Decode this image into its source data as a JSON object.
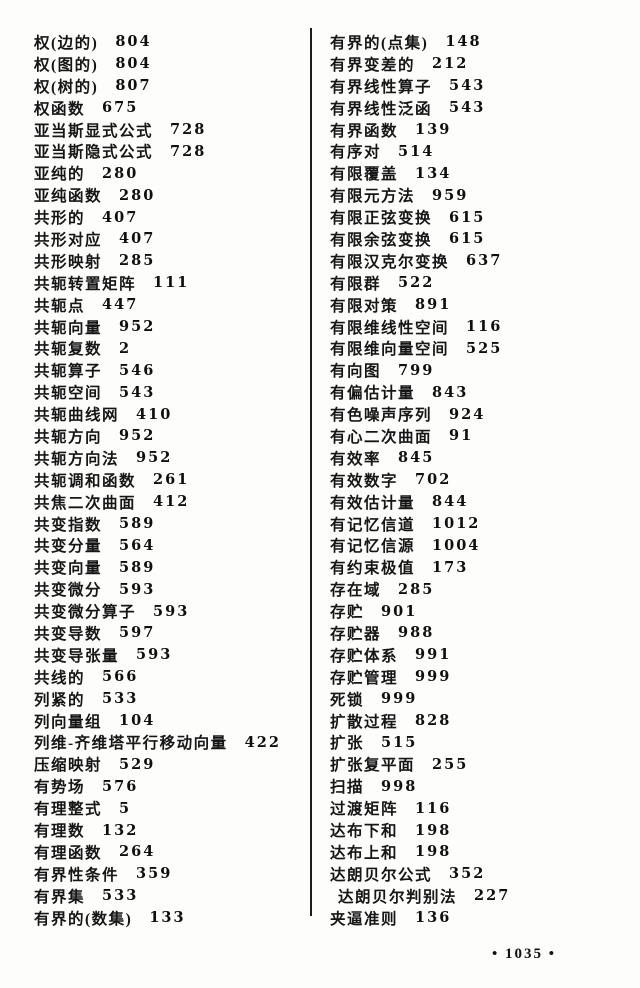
{
  "footer": {
    "page_number": "• 1035 •"
  },
  "index": {
    "left_column": {
      "entries": [
        {
          "term": "权(边的)",
          "page": "804"
        },
        {
          "term": "权(图的)",
          "page": "804"
        },
        {
          "term": "权(树的)",
          "page": "807"
        },
        {
          "term": "权函数",
          "page": "675"
        },
        {
          "term": "亚当斯显式公式",
          "page": "728"
        },
        {
          "term": "亚当斯隐式公式",
          "page": "728"
        },
        {
          "term": "亚纯的",
          "page": "280"
        },
        {
          "term": "亚纯函数",
          "page": "280"
        },
        {
          "term": "共形的",
          "page": "407"
        },
        {
          "term": "共形对应",
          "page": "407"
        },
        {
          "term": "共形映射",
          "page": "285"
        },
        {
          "term": "共轭转置矩阵",
          "page": "111"
        },
        {
          "term": "共轭点",
          "page": "447"
        },
        {
          "term": "共轭向量",
          "page": "952"
        },
        {
          "term": "共轭复数",
          "page": "2"
        },
        {
          "term": "共轭算子",
          "page": "546"
        },
        {
          "term": "共轭空间",
          "page": "543"
        },
        {
          "term": "共轭曲线网",
          "page": "410"
        },
        {
          "term": "共轭方向",
          "page": "952"
        },
        {
          "term": "共轭方向法",
          "page": "952"
        },
        {
          "term": "共轭调和函数",
          "page": "261"
        },
        {
          "term": "共焦二次曲面",
          "page": "412"
        },
        {
          "term": "共变指数",
          "page": "589"
        },
        {
          "term": "共变分量",
          "page": "564"
        },
        {
          "term": "共变向量",
          "page": "589"
        },
        {
          "term": "共变微分",
          "page": "593"
        },
        {
          "term": "共变微分算子",
          "page": "593"
        },
        {
          "term": "共变导数",
          "page": "597"
        },
        {
          "term": "共变导张量",
          "page": "593"
        },
        {
          "term": "共线的",
          "page": "566"
        },
        {
          "term": "列紧的",
          "page": "533"
        },
        {
          "term": "列向量组",
          "page": "104"
        },
        {
          "term": "列维-齐维塔平行移动向量",
          "page": "422"
        },
        {
          "term": "压缩映射",
          "page": "529"
        },
        {
          "term": "有势场",
          "page": "576"
        },
        {
          "term": "有理整式",
          "page": "5"
        },
        {
          "term": "有理数",
          "page": "132"
        },
        {
          "term": "有理函数",
          "page": "264"
        },
        {
          "term": "有界性条件",
          "page": "359"
        },
        {
          "term": "有界集",
          "page": "533"
        },
        {
          "term": "有界的(数集)",
          "page": "133"
        }
      ]
    },
    "right_column": {
      "entries": [
        {
          "term": "有界的(点集)",
          "page": "148"
        },
        {
          "term": "有界变差的",
          "page": "212"
        },
        {
          "term": "有界线性算子",
          "page": "543"
        },
        {
          "term": "有界线性泛函",
          "page": "543"
        },
        {
          "term": "有界函数",
          "page": "139"
        },
        {
          "term": "有序对",
          "page": "514"
        },
        {
          "term": "有限覆盖",
          "page": "134"
        },
        {
          "term": "有限元方法",
          "page": "959"
        },
        {
          "term": "有限正弦变换",
          "page": "615"
        },
        {
          "term": "有限余弦变换",
          "page": "615"
        },
        {
          "term": "有限汉克尔变换",
          "page": "637"
        },
        {
          "term": "有限群",
          "page": "522"
        },
        {
          "term": "有限对策",
          "page": "891"
        },
        {
          "term": "有限维线性空间",
          "page": "116"
        },
        {
          "term": "有限维向量空间",
          "page": "525"
        },
        {
          "term": "有向图",
          "page": "799"
        },
        {
          "term": "有偏估计量",
          "page": "843"
        },
        {
          "term": "有色噪声序列",
          "page": "924"
        },
        {
          "term": "有心二次曲面",
          "page": "91"
        },
        {
          "term": "有效率",
          "page": "845"
        },
        {
          "term": "有效数字",
          "page": "702"
        },
        {
          "term": "有效估计量",
          "page": "844"
        },
        {
          "term": "有记忆信道",
          "page": "1012"
        },
        {
          "term": "有记忆信源",
          "page": "1004"
        },
        {
          "term": "有约束极值",
          "page": "173"
        },
        {
          "term": "存在域",
          "page": "285"
        },
        {
          "term": "存贮",
          "page": "901"
        },
        {
          "term": "存贮器",
          "page": "988"
        },
        {
          "term": "存贮体系",
          "page": "991"
        },
        {
          "term": "存贮管理",
          "page": "999"
        },
        {
          "term": "死锁",
          "page": "999"
        },
        {
          "term": "扩散过程",
          "page": "828"
        },
        {
          "term": "扩张",
          "page": "515"
        },
        {
          "term": "扩张复平面",
          "page": "255"
        },
        {
          "term": "扫描",
          "page": "998"
        },
        {
          "term": "过渡矩阵",
          "page": "116"
        },
        {
          "term": "达布下和",
          "page": "198"
        },
        {
          "term": "达布上和",
          "page": "198"
        },
        {
          "term": "达朗贝尔公式",
          "page": "352"
        },
        {
          "term": "达朗贝尔判别法",
          "page": "227",
          "indent": true
        },
        {
          "term": "夹逼准则",
          "page": "136"
        }
      ]
    }
  }
}
